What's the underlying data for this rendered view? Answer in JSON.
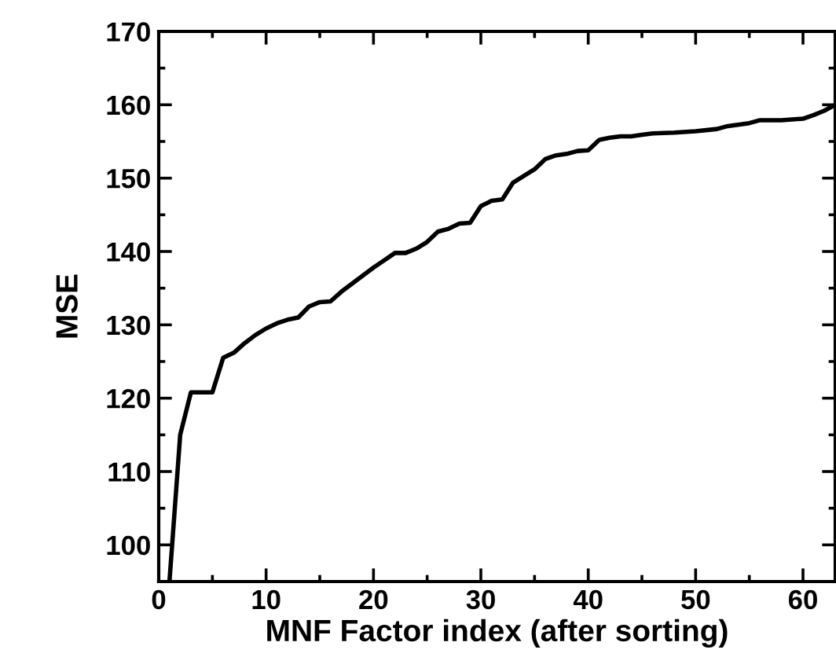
{
  "chart_data": {
    "type": "line",
    "xlabel": "MNF Factor index (after sorting)",
    "ylabel": "MSE",
    "x": [
      1,
      2,
      3,
      4,
      5,
      6,
      7,
      8,
      9,
      10,
      11,
      12,
      13,
      14,
      15,
      16,
      17,
      18,
      19,
      20,
      21,
      22,
      23,
      24,
      25,
      26,
      27,
      28,
      29,
      30,
      31,
      32,
      33,
      34,
      35,
      36,
      37,
      38,
      39,
      40,
      41,
      42,
      43,
      44,
      45,
      46,
      48,
      50,
      52,
      53,
      55,
      56,
      58,
      60,
      61,
      62,
      63
    ],
    "values": [
      95,
      115,
      120.8,
      120.8,
      120.8,
      125.5,
      126.2,
      127.5,
      128.6,
      129.5,
      130.2,
      130.7,
      131,
      132.5,
      133.1,
      133.2,
      134.5,
      135.6,
      136.7,
      137.8,
      138.8,
      139.8,
      139.8,
      140.4,
      141.3,
      142.7,
      143.1,
      143.8,
      143.9,
      146.2,
      146.9,
      147.1,
      149.4,
      150.3,
      151.2,
      152.6,
      153.1,
      153.3,
      153.7,
      153.8,
      155.2,
      155.5,
      155.7,
      155.7,
      155.9,
      156.1,
      156.2,
      156.4,
      156.7,
      157.1,
      157.5,
      157.9,
      157.9,
      158.1,
      158.6,
      159.2,
      160
    ],
    "color": "#000000",
    "xlim": [
      0,
      63
    ],
    "ylim": [
      95,
      170
    ],
    "xticks": [
      0,
      10,
      20,
      30,
      40,
      50,
      60
    ],
    "yticks": [
      100,
      110,
      120,
      130,
      140,
      150,
      160,
      170
    ],
    "grid": false,
    "marker": "none",
    "line_style": "solid"
  }
}
